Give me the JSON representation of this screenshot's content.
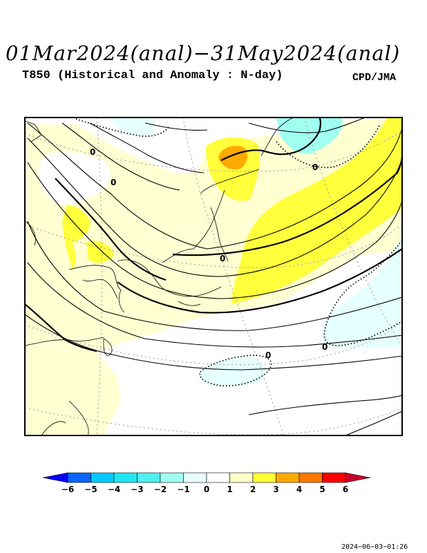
{
  "header": {
    "title": "01Mar2024(anal)−31May2024(anal)",
    "subtitle": "T850 (Historical and Anomaly : N-day)",
    "source": "CPD/JMA"
  },
  "map": {
    "contour_labels": [
      "0",
      "0",
      "0",
      "0",
      "0",
      "0"
    ]
  },
  "colorbar": {
    "ticks": [
      "−6",
      "−5",
      "−4",
      "−3",
      "−2",
      "−1",
      "0",
      "1",
      "2",
      "3",
      "4",
      "5",
      "6"
    ],
    "colors": [
      "#0000ff",
      "#0a64ff",
      "#00c8ff",
      "#1ee6f0",
      "#50f0f0",
      "#a0fff0",
      "#e6ffff",
      "#ffffff",
      "#ffffc8",
      "#ffff32",
      "#ffaa00",
      "#ff7800",
      "#ff0000",
      "#c80028"
    ]
  },
  "footer": {
    "timestamp": "2024−06−03−01:26"
  }
}
